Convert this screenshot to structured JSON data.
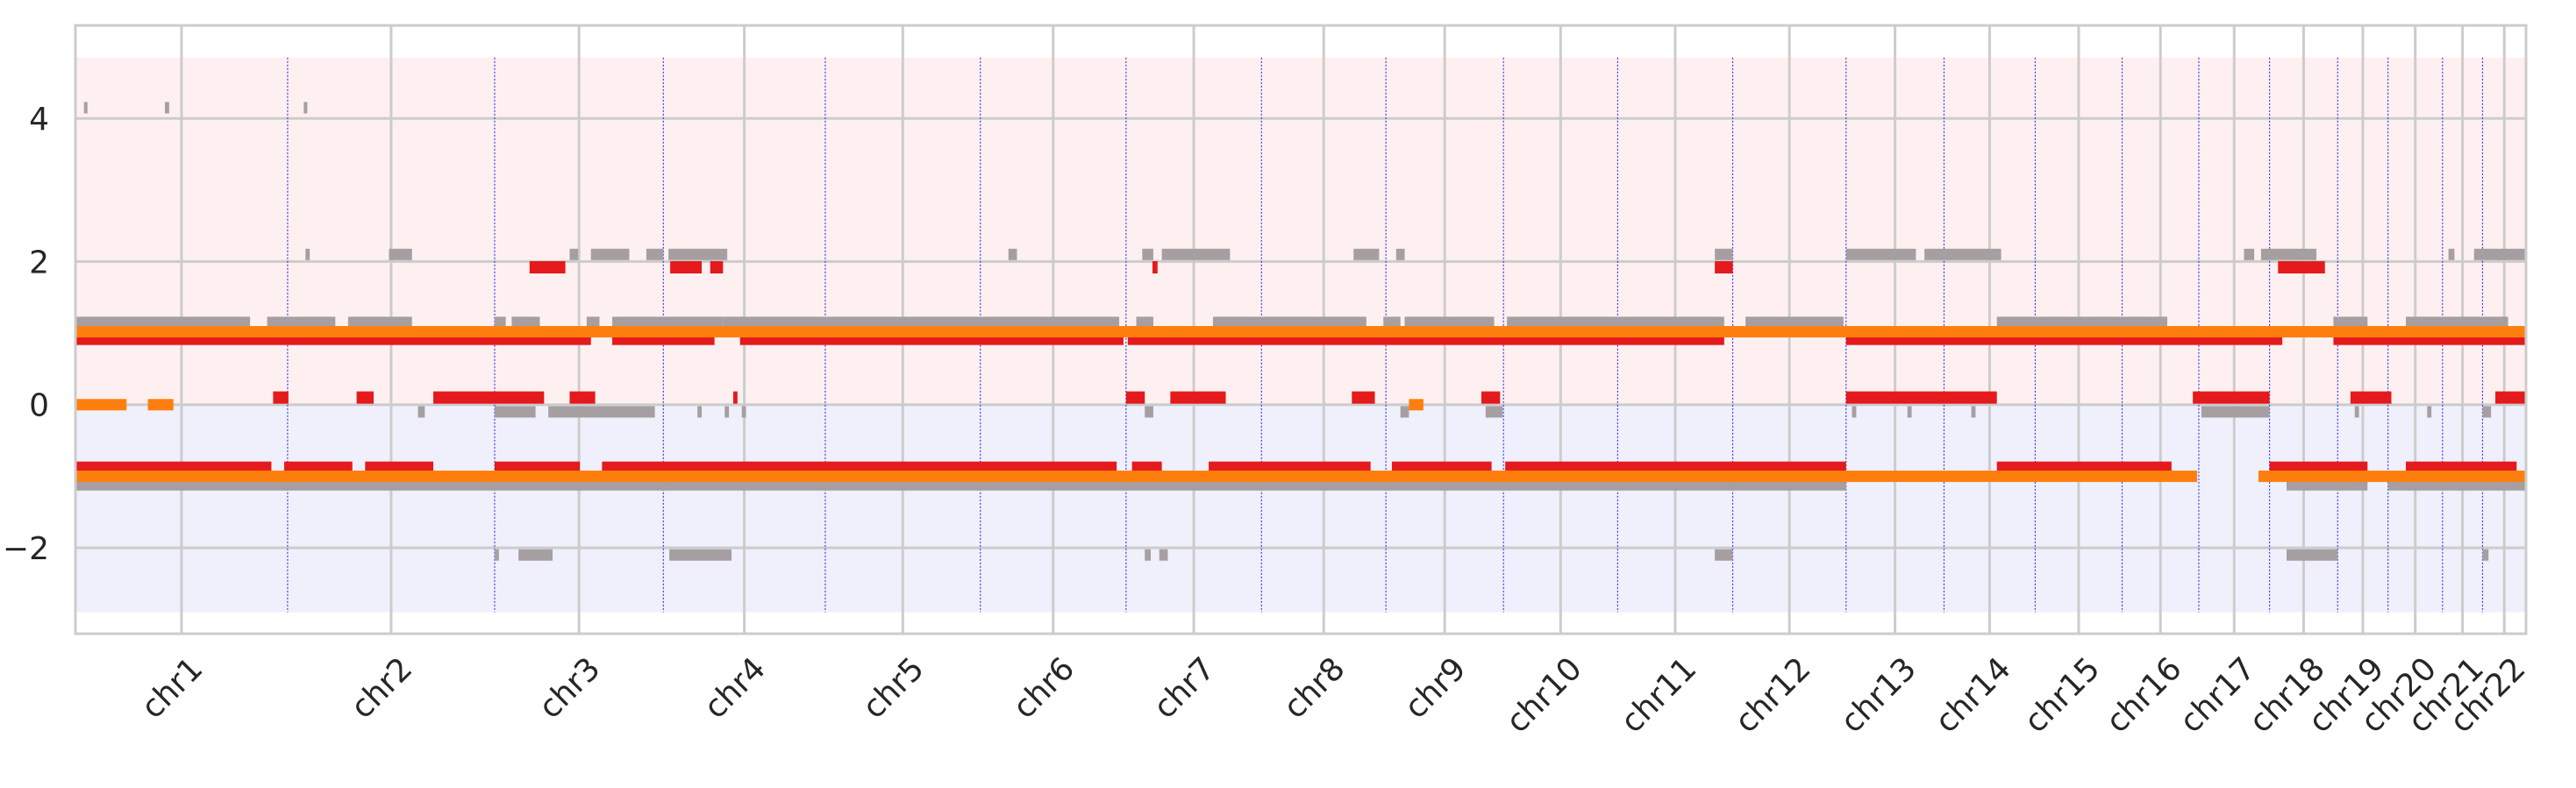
{
  "chart_data": {
    "type": "scatter",
    "title": "",
    "xlabel": "",
    "ylabel": "",
    "ylim": [
      -3.2,
      5.3
    ],
    "y_ticks": [
      4,
      2,
      0,
      -2
    ],
    "y_tick_labels": [
      "4",
      "2",
      "0",
      "−2"
    ],
    "grid": true,
    "legend": "none",
    "colors": {
      "background": "#ffffff",
      "gain_band": "#fef0f0",
      "loss_band": "#f0f0fc",
      "grid": "#cccccc",
      "boundary": "#3a3aee",
      "gray_series": "#a69fa1",
      "red_series": "#e41a1c",
      "orange_series": "#ff7f0e",
      "tick_text": "#262626"
    },
    "shaded_bands": [
      {
        "name": "gain",
        "y_range": [
          0,
          4.85
        ]
      },
      {
        "name": "loss",
        "y_range": [
          -2.9,
          0
        ]
      }
    ],
    "chromosomes": [
      {
        "label": "chr1",
        "start": 0,
        "end": 249
      },
      {
        "label": "chr2",
        "start": 249,
        "end": 492
      },
      {
        "label": "chr3",
        "start": 492,
        "end": 690
      },
      {
        "label": "chr4",
        "start": 690,
        "end": 880
      },
      {
        "label": "chr5",
        "start": 880,
        "end": 1062
      },
      {
        "label": "chr6",
        "start": 1062,
        "end": 1233
      },
      {
        "label": "chr7",
        "start": 1233,
        "end": 1392
      },
      {
        "label": "chr8",
        "start": 1392,
        "end": 1538
      },
      {
        "label": "chr9",
        "start": 1538,
        "end": 1676
      },
      {
        "label": "chr10",
        "start": 1676,
        "end": 1810
      },
      {
        "label": "chr11",
        "start": 1810,
        "end": 1945
      },
      {
        "label": "chr12",
        "start": 1945,
        "end": 2078
      },
      {
        "label": "chr13",
        "start": 2078,
        "end": 2193
      },
      {
        "label": "chr14",
        "start": 2193,
        "end": 2300
      },
      {
        "label": "chr15",
        "start": 2300,
        "end": 2402
      },
      {
        "label": "chr16",
        "start": 2402,
        "end": 2492
      },
      {
        "label": "chr17",
        "start": 2492,
        "end": 2575
      },
      {
        "label": "chr18",
        "start": 2575,
        "end": 2655
      },
      {
        "label": "chr19",
        "start": 2655,
        "end": 2714
      },
      {
        "label": "chr20",
        "start": 2714,
        "end": 2778
      },
      {
        "label": "chr21",
        "start": 2778,
        "end": 2825
      },
      {
        "label": "chr22",
        "start": 2825,
        "end": 2876
      }
    ],
    "series": [
      {
        "name": "",
        "color": "#a69fa1",
        "segments": [
          {
            "x0": 10,
            "x1": 14,
            "y": 4.15
          },
          {
            "x0": 105,
            "x1": 110,
            "y": 4.15
          },
          {
            "x0": 268,
            "x1": 272,
            "y": 4.15
          },
          {
            "x0": 270,
            "x1": 275,
            "y": 2.1
          },
          {
            "x0": 368,
            "x1": 395,
            "y": 2.1
          },
          {
            "x0": 580,
            "x1": 590,
            "y": 2.1
          },
          {
            "x0": 605,
            "x1": 650,
            "y": 2.1
          },
          {
            "x0": 670,
            "x1": 690,
            "y": 2.1
          },
          {
            "x0": 696,
            "x1": 765,
            "y": 2.1
          },
          {
            "x0": 1095,
            "x1": 1105,
            "y": 2.1
          },
          {
            "x0": 1252,
            "x1": 1265,
            "y": 2.1
          },
          {
            "x0": 1275,
            "x1": 1355,
            "y": 2.1
          },
          {
            "x0": 1500,
            "x1": 1530,
            "y": 2.1
          },
          {
            "x0": 1550,
            "x1": 1560,
            "y": 2.1
          },
          {
            "x0": 1924,
            "x1": 1945,
            "y": 2.1
          },
          {
            "x0": 2078,
            "x1": 2160,
            "y": 2.1
          },
          {
            "x0": 2170,
            "x1": 2260,
            "y": 2.1
          },
          {
            "x0": 2545,
            "x1": 2557,
            "y": 2.1
          },
          {
            "x0": 2565,
            "x1": 2630,
            "y": 2.1
          },
          {
            "x0": 2785,
            "x1": 2792,
            "y": 2.1
          },
          {
            "x0": 2815,
            "x1": 2876,
            "y": 2.1
          },
          {
            "x0": 0,
            "x1": 205,
            "y": 1.15
          },
          {
            "x0": 225,
            "x1": 305,
            "y": 1.15
          },
          {
            "x0": 320,
            "x1": 395,
            "y": 1.15
          },
          {
            "x0": 492,
            "x1": 505,
            "y": 1.15
          },
          {
            "x0": 512,
            "x1": 545,
            "y": 1.15
          },
          {
            "x0": 600,
            "x1": 615,
            "y": 1.15
          },
          {
            "x0": 630,
            "x1": 760,
            "y": 1.15
          },
          {
            "x0": 760,
            "x1": 1225,
            "y": 1.15
          },
          {
            "x0": 1245,
            "x1": 1265,
            "y": 1.15
          },
          {
            "x0": 1335,
            "x1": 1515,
            "y": 1.15
          },
          {
            "x0": 1535,
            "x1": 1555,
            "y": 1.15
          },
          {
            "x0": 1560,
            "x1": 1665,
            "y": 1.15
          },
          {
            "x0": 1680,
            "x1": 1935,
            "y": 1.15
          },
          {
            "x0": 1960,
            "x1": 2075,
            "y": 1.15
          },
          {
            "x0": 2255,
            "x1": 2455,
            "y": 1.15
          },
          {
            "x0": 2650,
            "x1": 2690,
            "y": 1.15
          },
          {
            "x0": 2735,
            "x1": 2855,
            "y": 1.15
          },
          {
            "x0": 402,
            "x1": 410,
            "y": -0.1
          },
          {
            "x0": 492,
            "x1": 540,
            "y": -0.1
          },
          {
            "x0": 555,
            "x1": 680,
            "y": -0.1
          },
          {
            "x0": 730,
            "x1": 735,
            "y": -0.1
          },
          {
            "x0": 762,
            "x1": 767,
            "y": -0.1
          },
          {
            "x0": 782,
            "x1": 787,
            "y": -0.1
          },
          {
            "x0": 1255,
            "x1": 1265,
            "y": -0.1
          },
          {
            "x0": 1555,
            "x1": 1565,
            "y": -0.1
          },
          {
            "x0": 1655,
            "x1": 1675,
            "y": -0.1
          },
          {
            "x0": 2085,
            "x1": 2090,
            "y": -0.1
          },
          {
            "x0": 2150,
            "x1": 2155,
            "y": -0.1
          },
          {
            "x0": 2225,
            "x1": 2230,
            "y": -0.1
          },
          {
            "x0": 2495,
            "x1": 2575,
            "y": -0.1
          },
          {
            "x0": 2675,
            "x1": 2680,
            "y": -0.1
          },
          {
            "x0": 2760,
            "x1": 2765,
            "y": -0.1
          },
          {
            "x0": 2825,
            "x1": 2835,
            "y": -0.1
          },
          {
            "x0": 0,
            "x1": 492,
            "y": -1.12
          },
          {
            "x0": 492,
            "x1": 690,
            "y": -1.12
          },
          {
            "x0": 690,
            "x1": 1233,
            "y": -1.12
          },
          {
            "x0": 1233,
            "x1": 1538,
            "y": -1.12
          },
          {
            "x0": 1538,
            "x1": 1945,
            "y": -1.12
          },
          {
            "x0": 1945,
            "x1": 2078,
            "y": -1.12
          },
          {
            "x0": 2595,
            "x1": 2690,
            "y": -1.12
          },
          {
            "x0": 2714,
            "x1": 2876,
            "y": -1.12
          },
          {
            "x0": 492,
            "x1": 497,
            "y": -2.1
          },
          {
            "x0": 520,
            "x1": 560,
            "y": -2.1
          },
          {
            "x0": 697,
            "x1": 770,
            "y": -2.1
          },
          {
            "x0": 1255,
            "x1": 1262,
            "y": -2.1
          },
          {
            "x0": 1272,
            "x1": 1282,
            "y": -2.1
          },
          {
            "x0": 1924,
            "x1": 1945,
            "y": -2.1
          },
          {
            "x0": 2595,
            "x1": 2655,
            "y": -2.1
          },
          {
            "x0": 2825,
            "x1": 2832,
            "y": -2.1
          }
        ]
      },
      {
        "name": "",
        "color": "#e41a1c",
        "segments": [
          {
            "x0": 0,
            "x1": 605,
            "y": 0.92
          },
          {
            "x0": 630,
            "x1": 750,
            "y": 0.92
          },
          {
            "x0": 780,
            "x1": 1230,
            "y": 0.92
          },
          {
            "x0": 1235,
            "x1": 1935,
            "y": 0.92
          },
          {
            "x0": 2078,
            "x1": 2590,
            "y": 0.92
          },
          {
            "x0": 2650,
            "x1": 2876,
            "y": 0.92
          },
          {
            "x0": 533,
            "x1": 575,
            "y": 1.92
          },
          {
            "x0": 698,
            "x1": 735,
            "y": 1.92
          },
          {
            "x0": 745,
            "x1": 760,
            "y": 1.92
          },
          {
            "x0": 1264,
            "x1": 1270,
            "y": 1.92
          },
          {
            "x0": 1924,
            "x1": 1945,
            "y": 1.92
          },
          {
            "x0": 2585,
            "x1": 2640,
            "y": 1.92
          },
          {
            "x0": 232,
            "x1": 250,
            "y": 0.1
          },
          {
            "x0": 330,
            "x1": 350,
            "y": 0.1
          },
          {
            "x0": 420,
            "x1": 550,
            "y": 0.1
          },
          {
            "x0": 580,
            "x1": 610,
            "y": 0.1
          },
          {
            "x0": 772,
            "x1": 777,
            "y": 0.1
          },
          {
            "x0": 1233,
            "x1": 1255,
            "y": 0.1
          },
          {
            "x0": 1285,
            "x1": 1350,
            "y": 0.1
          },
          {
            "x0": 1498,
            "x1": 1525,
            "y": 0.1
          },
          {
            "x0": 1650,
            "x1": 1672,
            "y": 0.1
          },
          {
            "x0": 2078,
            "x1": 2255,
            "y": 0.1
          },
          {
            "x0": 2485,
            "x1": 2575,
            "y": 0.1
          },
          {
            "x0": 2670,
            "x1": 2718,
            "y": 0.1
          },
          {
            "x0": 2840,
            "x1": 2876,
            "y": 0.1
          },
          {
            "x0": 0,
            "x1": 230,
            "y": -0.88
          },
          {
            "x0": 245,
            "x1": 325,
            "y": -0.88
          },
          {
            "x0": 340,
            "x1": 420,
            "y": -0.88
          },
          {
            "x0": 492,
            "x1": 592,
            "y": -0.88
          },
          {
            "x0": 618,
            "x1": 1222,
            "y": -0.88
          },
          {
            "x0": 1240,
            "x1": 1275,
            "y": -0.88
          },
          {
            "x0": 1330,
            "x1": 1520,
            "y": -0.88
          },
          {
            "x0": 1545,
            "x1": 1662,
            "y": -0.88
          },
          {
            "x0": 1678,
            "x1": 2078,
            "y": -0.88
          },
          {
            "x0": 2255,
            "x1": 2460,
            "y": -0.88
          },
          {
            "x0": 2575,
            "x1": 2690,
            "y": -0.88
          },
          {
            "x0": 2735,
            "x1": 2865,
            "y": -0.88
          }
        ]
      },
      {
        "name": "",
        "color": "#ff7f0e",
        "segments": [
          {
            "x0": 0,
            "x1": 2876,
            "y": 1.02
          },
          {
            "x0": 0,
            "x1": 60,
            "y": 0.0
          },
          {
            "x0": 85,
            "x1": 115,
            "y": 0.0
          },
          {
            "x0": 1565,
            "x1": 1582,
            "y": 0.0
          },
          {
            "x0": 0,
            "x1": 2490,
            "y": -1.0
          },
          {
            "x0": 2562,
            "x1": 2876,
            "y": -1.0
          }
        ]
      }
    ]
  }
}
